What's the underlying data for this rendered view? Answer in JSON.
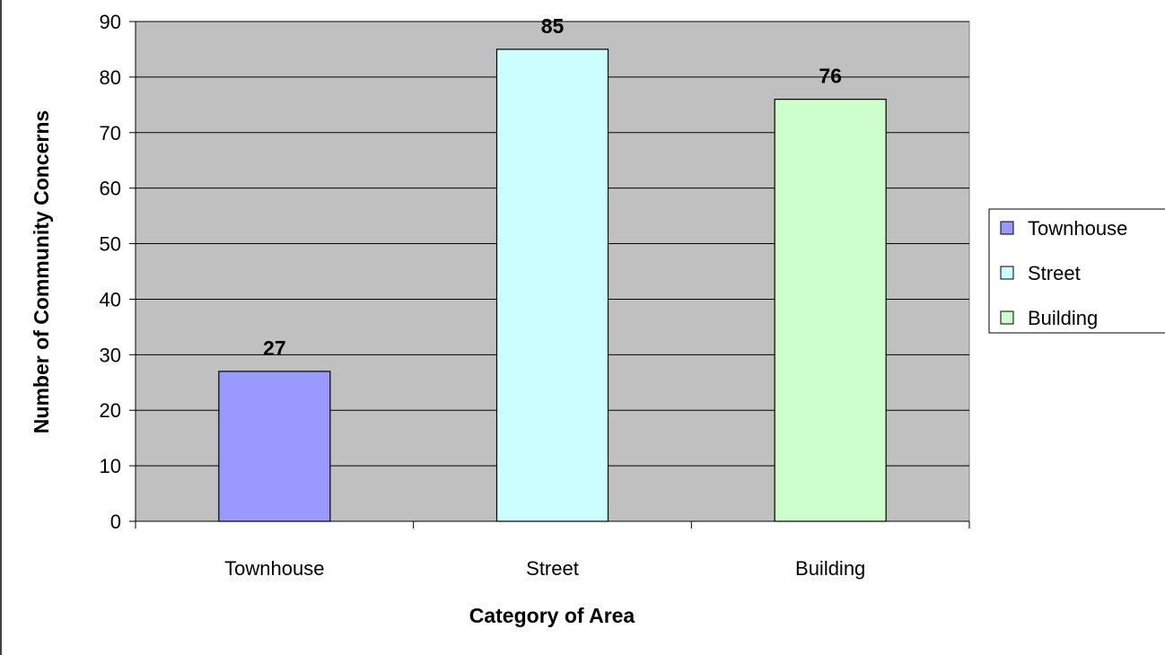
{
  "chart_data": {
    "type": "bar",
    "title": "",
    "xlabel": "Category of Area",
    "ylabel": "Number of Community Concerns",
    "categories": [
      "Townhouse",
      "Street",
      "Building"
    ],
    "values": [
      27,
      85,
      76
    ],
    "colors": [
      "#9999ff",
      "#ccffff",
      "#ccffcc"
    ],
    "plot_background": "#c0c0c0",
    "ylim": [
      0,
      90
    ],
    "y_ticks": [
      0,
      10,
      20,
      30,
      40,
      50,
      60,
      70,
      80,
      90
    ],
    "grid": true,
    "data_labels": true,
    "legend": {
      "placement": "right",
      "entries": [
        "Townhouse",
        "Street",
        "Building"
      ]
    }
  }
}
